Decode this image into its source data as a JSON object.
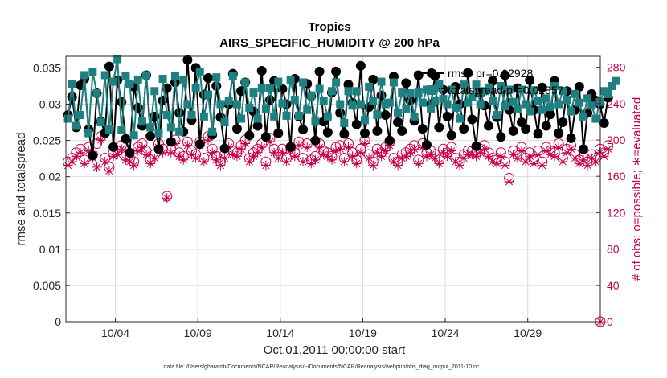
{
  "chart_data": {
    "type": "line",
    "title": "Tropics",
    "subtitle": "AIRS_SPECIFIC_HUMIDITY @ 200 hPa",
    "xlabel": "Oct.01,2011 00:00:00 start",
    "ylabel": "rmse and totalspread",
    "y2label": "# of obs: o=possible; ∗=evaluated",
    "xlim": [
      0,
      32.4
    ],
    "ylim": [
      0,
      0.0366
    ],
    "y2lim": [
      0,
      292
    ],
    "x_ticks": [
      3,
      8,
      13,
      18,
      23,
      28
    ],
    "x_tick_labels": [
      "10/04",
      "10/09",
      "10/14",
      "10/19",
      "10/24",
      "10/29"
    ],
    "y_ticks": [
      0,
      0.005,
      0.01,
      0.015,
      0.02,
      0.025,
      0.03,
      0.035
    ],
    "y_tick_labels": [
      "0",
      "0.005",
      "0.01",
      "0.015",
      "0.02",
      "0.025",
      "0.03",
      "0.035"
    ],
    "y2_ticks": [
      0,
      40,
      80,
      120,
      160,
      200,
      240,
      280
    ],
    "y2_tick_labels": [
      "0",
      "40",
      "80",
      "120",
      "160",
      "200",
      "240",
      "280"
    ],
    "samples_per_day": 4,
    "series": [
      {
        "name": "rmse",
        "legend": "rmse pr=0.02928",
        "color": "#000000",
        "marker": "circle",
        "axis": "left",
        "values": [
          0.0285,
          0.031,
          0.0268,
          0.0326,
          0.0335,
          0.0265,
          0.0229,
          0.0315,
          0.0276,
          0.026,
          0.0352,
          0.0241,
          0.0333,
          0.0303,
          0.0252,
          0.0233,
          0.0324,
          0.0295,
          0.027,
          0.034,
          0.0256,
          0.0283,
          0.0238,
          0.0305,
          0.0322,
          0.0248,
          0.033,
          0.0288,
          0.0262,
          0.0361,
          0.0278,
          0.035,
          0.0245,
          0.0313,
          0.0336,
          0.0258,
          0.0325,
          0.0282,
          0.0239,
          0.03,
          0.0342,
          0.0266,
          0.0318,
          0.033,
          0.0257,
          0.029,
          0.027,
          0.0346,
          0.0255,
          0.0306,
          0.0332,
          0.026,
          0.0321,
          0.03,
          0.0241,
          0.0335,
          0.0283,
          0.0265,
          0.0328,
          0.0311,
          0.025,
          0.0345,
          0.0276,
          0.0261,
          0.0316,
          0.0345,
          0.0288,
          0.0259,
          0.0327,
          0.0302,
          0.0272,
          0.0353,
          0.026,
          0.0296,
          0.0334,
          0.0263,
          0.0312,
          0.0285,
          0.025,
          0.0338,
          0.0275,
          0.0263,
          0.0329,
          0.0305,
          0.0277,
          0.034,
          0.0266,
          0.0244,
          0.03,
          0.0339,
          0.0268,
          0.032,
          0.0283,
          0.0257,
          0.0324,
          0.03,
          0.0266,
          0.0343,
          0.0279,
          0.0242,
          0.0315,
          0.0298,
          0.027,
          0.0332,
          0.0282,
          0.0255,
          0.034,
          0.0292,
          0.0263,
          0.0322,
          0.0275,
          0.0266,
          0.0333,
          0.0292,
          0.0259,
          0.0323,
          0.027,
          0.0286,
          0.0332,
          0.026,
          0.0275,
          0.0318,
          0.0253,
          0.0292,
          0.0324,
          0.0238,
          0.0288,
          0.0314,
          0.0305,
          0.03,
          0.0274,
          0.0309
        ]
      },
      {
        "name": "totalspread",
        "legend": "totalspread pr=0.02857",
        "color": "#1e8080",
        "marker": "square",
        "axis": "left",
        "values": [
          0.028,
          0.0328,
          0.027,
          0.0285,
          0.034,
          0.026,
          0.0344,
          0.0315,
          0.0275,
          0.034,
          0.0265,
          0.0331,
          0.0362,
          0.0264,
          0.0339,
          0.0328,
          0.0257,
          0.0334,
          0.0276,
          0.034,
          0.0268,
          0.0318,
          0.026,
          0.0335,
          0.0285,
          0.0268,
          0.0339,
          0.0262,
          0.0334,
          0.03,
          0.0285,
          0.0322,
          0.0345,
          0.0283,
          0.0313,
          0.0262,
          0.0337,
          0.03,
          0.0275,
          0.0305,
          0.0339,
          0.03,
          0.028,
          0.033,
          0.0295,
          0.0316,
          0.028,
          0.0322,
          0.0293,
          0.0322,
          0.0283,
          0.0331,
          0.0301,
          0.0284,
          0.0333,
          0.0306,
          0.0284,
          0.033,
          0.0292,
          0.0312,
          0.0276,
          0.0321,
          0.0305,
          0.0283,
          0.0318,
          0.033,
          0.03,
          0.0274,
          0.0318,
          0.0298,
          0.0318,
          0.03,
          0.0278,
          0.0324,
          0.0305,
          0.0285,
          0.0331,
          0.03,
          0.0302,
          0.033,
          0.0288,
          0.0316,
          0.0293,
          0.0315,
          0.0283,
          0.0316,
          0.0302,
          0.032,
          0.0294,
          0.0305,
          0.0328,
          0.0307,
          0.03,
          0.032,
          0.0295,
          0.028,
          0.0327,
          0.0302,
          0.031,
          0.0327,
          0.03,
          0.0318,
          0.0323,
          0.0305,
          0.0285,
          0.0325,
          0.0297,
          0.032,
          0.0303,
          0.0294,
          0.032,
          0.03,
          0.029,
          0.0319,
          0.0305,
          0.0292,
          0.0308,
          0.0296,
          0.0325,
          0.03,
          0.0318,
          0.0306,
          0.029,
          0.0314,
          0.0302,
          0.0283,
          0.0308,
          0.0298,
          0.028,
          0.0303,
          0.0318,
          0.0314,
          0.0325,
          0.0332
        ]
      },
      {
        "name": "possible",
        "marker": "open-circle",
        "color": "#c8004a",
        "axis": "right",
        "values": [
          176,
          180,
          186,
          190,
          178,
          192,
          184,
          196,
          204,
          180,
          170,
          186,
          188,
          194,
          182,
          180,
          176,
          192,
          196,
          188,
          178,
          184,
          196,
          190,
          138,
          190,
          200,
          186,
          182,
          198,
          188,
          184,
          198,
          180,
          204,
          190,
          182,
          176,
          184,
          196,
          188,
          186,
          194,
          200,
          180,
          186,
          190,
          196,
          176,
          202,
          190,
          184,
          190,
          180,
          192,
          186,
          198,
          180,
          196,
          178,
          182,
          196,
          188,
          186,
          182,
          192,
          194,
          180,
          196,
          186,
          178,
          190,
          200,
          184,
          176,
          190,
          186,
          192,
          198,
          180,
          176,
          184,
          186,
          190,
          194,
          178,
          196,
          186,
          188,
          184,
          178,
          190,
          186,
          192,
          180,
          176,
          184,
          188,
          188,
          186,
          190,
          194,
          186,
          180,
          178,
          186,
          176,
          158,
          188,
          184,
          192,
          180,
          186,
          178,
          188,
          176,
          192,
          188,
          186,
          196,
          180,
          190,
          194,
          184,
          178,
          182,
          176,
          184,
          180,
          190,
          186,
          194
        ]
      },
      {
        "name": "evaluated",
        "marker": "asterisk",
        "color": "#c8004a",
        "axis": "right",
        "values": [
          172,
          176,
          182,
          186,
          174,
          188,
          180,
          170,
          200,
          176,
          166,
          182,
          184,
          190,
          178,
          176,
          172,
          188,
          192,
          184,
          174,
          180,
          192,
          186,
          136,
          186,
          196,
          182,
          178,
          194,
          184,
          180,
          194,
          176,
          200,
          186,
          178,
          172,
          180,
          192,
          184,
          182,
          190,
          196,
          176,
          182,
          186,
          192,
          172,
          198,
          186,
          180,
          186,
          176,
          188,
          182,
          194,
          176,
          192,
          174,
          178,
          192,
          184,
          182,
          178,
          188,
          190,
          176,
          192,
          182,
          174,
          186,
          196,
          180,
          172,
          186,
          182,
          188,
          194,
          176,
          172,
          180,
          182,
          186,
          190,
          174,
          192,
          182,
          184,
          180,
          174,
          186,
          182,
          188,
          176,
          172,
          180,
          184,
          184,
          182,
          186,
          190,
          182,
          176,
          174,
          182,
          172,
          154,
          184,
          180,
          188,
          176,
          182,
          174,
          184,
          172,
          188,
          184,
          182,
          192,
          176,
          186,
          190,
          180,
          174,
          178,
          172,
          180,
          176,
          186,
          182,
          190
        ]
      }
    ],
    "legend_position": "top-right"
  },
  "footer": {
    "datafile": "data file: /Users/gharamti/Documents/NCAR/Reanalysis/~/Documents/NCAR/Reanalysis/webpub/obs_diag_output_2011-10.nc"
  },
  "colors": {
    "rmse": "#000000",
    "spread": "#1e8080",
    "obs": "#c8004a",
    "axis": "#262626",
    "grid": "#dcdcdc"
  }
}
